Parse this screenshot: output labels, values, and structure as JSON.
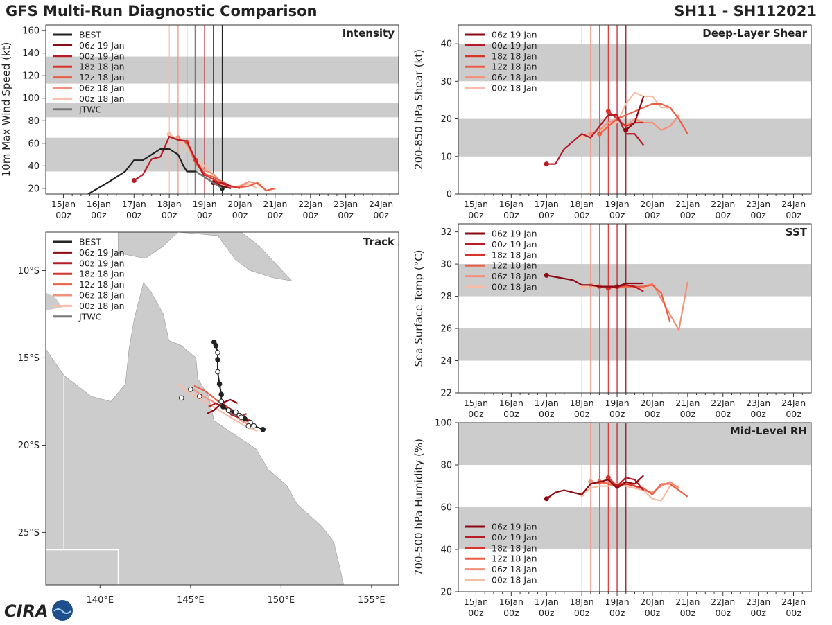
{
  "header": {
    "title": "GFS Multi-Run Diagnostic Comparison",
    "storm_id": "SH11 - SH112021"
  },
  "logo": {
    "text": "CIRA"
  },
  "colors": {
    "best": "#222222",
    "jtwc": "#777777",
    "runs": [
      "#8b0a13",
      "#b81a26",
      "#d8332d",
      "#ea5f45",
      "#f4907a",
      "#f9bda5"
    ],
    "band": "#cccccc",
    "land": "#cccccc",
    "ocean": "#ffffff"
  },
  "time_axis": {
    "labels": [
      "15Jan 00z",
      "16Jan 00z",
      "17Jan 00z",
      "18Jan 00z",
      "19Jan 00z",
      "20Jan 00z",
      "21Jan 00z",
      "22Jan 00z",
      "23Jan 00z",
      "24Jan 00z"
    ],
    "days": [
      15,
      16,
      17,
      18,
      19,
      20,
      21,
      22,
      23,
      24
    ],
    "range": [
      14.5,
      24.5
    ]
  },
  "run_labels": [
    "06z 19 Jan",
    "00z 19 Jan",
    "18z 18 Jan",
    "12z 18 Jan",
    "06z 18 Jan",
    "00z 18 Jan"
  ],
  "run_init_days": [
    19.25,
    19.0,
    18.75,
    18.5,
    18.25,
    18.0
  ],
  "chart_data": [
    {
      "id": "intensity",
      "type": "line",
      "title": "Intensity",
      "ylabel": "10m Max Wind Speed (kt)",
      "ylim": [
        15,
        165
      ],
      "yticks": [
        20,
        40,
        60,
        80,
        100,
        120,
        140,
        160
      ],
      "bands": [
        [
          35,
          65
        ],
        [
          83,
          96
        ],
        [
          113,
          137
        ]
      ],
      "legend": [
        "BEST",
        "06z 19 Jan",
        "00z 19 Jan",
        "18z 18 Jan",
        "12z 18 Jan",
        "06z 18 Jan",
        "00z 18 Jan",
        "JTWC"
      ],
      "vlines": [
        19.25,
        19.0,
        18.75,
        18.5,
        18.25,
        18.0,
        18.73,
        19.5
      ],
      "best": {
        "x": [
          15.7,
          16.25,
          16.75,
          17.0,
          17.25,
          17.5,
          17.75,
          18.0,
          18.25,
          18.4,
          18.5,
          18.75,
          19.0,
          19.25,
          19.5
        ],
        "y": [
          15,
          25,
          35,
          45,
          45,
          50,
          55,
          55,
          50,
          40,
          35,
          35,
          30,
          25,
          20
        ]
      },
      "jtwc": {
        "x": [
          18.75,
          19.0,
          19.25,
          19.5
        ],
        "y": [
          35,
          30,
          25,
          20
        ]
      },
      "series": [
        {
          "name": "06z 19 Jan",
          "x": [
            19.25,
            19.5,
            19.75
          ],
          "y": [
            25,
            22,
            20
          ]
        },
        {
          "name": "00z 19 Jan",
          "x": [
            17.0,
            17.25,
            17.5,
            17.75,
            18.0,
            18.25,
            18.5,
            18.75,
            19.0,
            19.25,
            19.5,
            19.75
          ],
          "y": [
            27,
            32,
            46,
            48,
            66,
            63,
            62,
            45,
            30,
            25,
            25,
            22
          ]
        },
        {
          "name": "18z 18 Jan",
          "x": [
            18.75,
            19.0,
            19.25,
            19.5,
            19.75,
            20.0
          ],
          "y": [
            45,
            32,
            28,
            24,
            22,
            20
          ]
        },
        {
          "name": "12z 18 Jan",
          "x": [
            18.5,
            18.75,
            19.0,
            19.25,
            19.5,
            19.75,
            20.0,
            20.25,
            20.5,
            20.75,
            21.0
          ],
          "y": [
            61,
            42,
            33,
            30,
            26,
            22,
            21,
            22,
            25,
            18,
            20
          ]
        },
        {
          "name": "06z 18 Jan",
          "x": [
            18.25,
            18.5,
            18.75,
            19.0,
            19.25,
            19.5,
            19.75,
            20.0,
            20.25,
            20.5,
            20.75,
            21.0
          ],
          "y": [
            65,
            60,
            44,
            36,
            33,
            24,
            21,
            22,
            26,
            24,
            18,
            20
          ]
        },
        {
          "name": "00z 18 Jan",
          "x": [
            18.0,
            18.25,
            18.5,
            18.75,
            19.0,
            19.25,
            19.5,
            19.75,
            20.0,
            20.25,
            20.5
          ],
          "y": [
            68,
            63,
            55,
            46,
            40,
            31,
            23,
            21,
            22,
            24,
            20
          ]
        }
      ]
    },
    {
      "id": "shear",
      "type": "line",
      "title": "Deep-Layer Shear",
      "ylabel": "200-850 hPa Shear (kt)",
      "ylim": [
        0,
        45
      ],
      "yticks": [
        0,
        10,
        20,
        30,
        40
      ],
      "bands": [
        [
          10,
          20
        ],
        [
          30,
          40
        ]
      ],
      "legend": [
        "06z 19 Jan",
        "00z 19 Jan",
        "18z 18 Jan",
        "12z 18 Jan",
        "06z 18 Jan",
        "00z 18 Jan"
      ],
      "vlines": [
        19.25,
        19.0,
        18.75,
        18.5,
        18.25,
        18.0
      ],
      "series": [
        {
          "name": "06z 19 Jan",
          "x": [
            19.25,
            19.5,
            19.75
          ],
          "y": [
            17,
            19,
            26
          ]
        },
        {
          "name": "00z 19 Jan",
          "x": [
            17.0,
            17.25,
            17.5,
            17.75,
            18.0,
            18.25,
            18.5,
            18.75,
            19.0,
            19.25,
            19.5,
            19.75
          ],
          "y": [
            8,
            8,
            12,
            14,
            16,
            15,
            18,
            21,
            21,
            16,
            16,
            13
          ]
        },
        {
          "name": "18z 18 Jan",
          "x": [
            18.75,
            19.0,
            19.25,
            19.5,
            19.75
          ],
          "y": [
            22,
            20,
            18,
            19,
            19
          ]
        },
        {
          "name": "12z 18 Jan",
          "x": [
            18.5,
            18.75,
            19.0,
            19.25,
            19.5,
            19.75,
            20.0,
            20.25,
            20.5,
            20.75,
            21.0
          ],
          "y": [
            16,
            18,
            20,
            21,
            22,
            23,
            24,
            24,
            23,
            20,
            16
          ]
        },
        {
          "name": "06z 18 Jan",
          "x": [
            18.25,
            18.5,
            18.75,
            19.0,
            19.25,
            19.5,
            19.75,
            20.0,
            20.25,
            20.5,
            20.75
          ],
          "y": [
            16,
            17,
            19,
            20,
            18,
            20,
            19,
            19,
            17,
            18,
            21
          ]
        },
        {
          "name": "00z 18 Jan",
          "x": [
            18.0,
            18.25,
            18.5,
            18.75,
            19.0,
            19.25,
            19.5,
            19.75,
            20.0,
            20.25,
            20.5
          ],
          "y": [
            15,
            16,
            17,
            18,
            19,
            24,
            27,
            26,
            26,
            23,
            23
          ]
        }
      ]
    },
    {
      "id": "sst",
      "type": "line",
      "title": "SST",
      "ylabel": "Sea Surface Temp (°C)",
      "ylim": [
        22,
        32.5
      ],
      "yticks": [
        22,
        24,
        26,
        28,
        30,
        32
      ],
      "bands": [
        [
          24,
          26
        ],
        [
          28,
          30
        ]
      ],
      "legend": [
        "06z 19 Jan",
        "00z 19 Jan",
        "18z 18 Jan",
        "12z 18 Jan",
        "06z 18 Jan",
        "00z 18 Jan"
      ],
      "vlines": [
        19.25,
        19.0,
        18.75,
        18.5,
        18.25,
        18.0
      ],
      "series": [
        {
          "name": "06z 19 Jan",
          "x": [
            17.0,
            17.5,
            17.75,
            18.0,
            18.25,
            18.5,
            18.75,
            19.0,
            19.25,
            19.5,
            19.75
          ],
          "y": [
            29.3,
            29.1,
            29.0,
            28.7,
            28.7,
            28.6,
            28.6,
            28.6,
            28.8,
            28.8,
            28.8
          ]
        },
        {
          "name": "00z 19 Jan",
          "x": [
            19.0,
            19.25,
            19.5,
            19.75
          ],
          "y": [
            28.6,
            28.7,
            28.6,
            28.3
          ]
        },
        {
          "name": "18z 18 Jan",
          "x": [
            18.75,
            19.0,
            19.25,
            19.5
          ],
          "y": [
            28.5,
            28.6,
            28.7,
            28.6
          ]
        },
        {
          "name": "12z 18 Jan",
          "x": [
            18.5,
            18.75,
            19.0,
            19.25,
            19.5,
            19.75,
            20.0,
            20.25,
            20.5
          ],
          "y": [
            28.6,
            28.5,
            28.6,
            28.6,
            28.6,
            28.6,
            28.7,
            28.2,
            26.4
          ]
        },
        {
          "name": "06z 18 Jan",
          "x": [
            18.25,
            18.5,
            18.75,
            19.0,
            19.25,
            19.5,
            19.75,
            20.0,
            20.75,
            21.0
          ],
          "y": [
            28.7,
            28.6,
            28.6,
            28.5,
            28.6,
            28.6,
            28.6,
            28.8,
            25.9,
            28.9
          ]
        },
        {
          "name": "00z 18 Jan",
          "x": [
            18.0,
            18.25,
            18.5,
            18.75,
            19.0,
            19.25,
            19.5,
            19.75,
            20.0
          ],
          "y": [
            28.6,
            28.6,
            28.6,
            28.5,
            28.5,
            28.6,
            28.5,
            28.5,
            28.5
          ]
        }
      ]
    },
    {
      "id": "rh",
      "type": "line",
      "title": "Mid-Level RH",
      "ylabel": "700-500 hPa Humidity (%)",
      "ylim": [
        20,
        100
      ],
      "yticks": [
        20,
        40,
        60,
        80,
        100
      ],
      "bands": [
        [
          40,
          60
        ],
        [
          80,
          100
        ]
      ],
      "legend": [
        "06z 19 Jan",
        "00z 19 Jan",
        "18z 18 Jan",
        "12z 18 Jan",
        "06z 18 Jan",
        "00z 18 Jan"
      ],
      "vlines": [
        19.25,
        19.0,
        18.75,
        18.5,
        18.25,
        18.0
      ],
      "series": [
        {
          "name": "06z 19 Jan",
          "x": [
            17.0,
            17.25,
            17.5,
            17.75,
            18.0,
            18.25,
            18.5,
            18.75,
            19.0,
            19.25,
            19.5,
            19.75
          ],
          "y": [
            64,
            67,
            68,
            67,
            66,
            71,
            72,
            73,
            69,
            72,
            71,
            75
          ]
        },
        {
          "name": "00z 19 Jan",
          "x": [
            19.0,
            19.25,
            19.5,
            19.75
          ],
          "y": [
            70,
            74,
            73,
            68
          ]
        },
        {
          "name": "18z 18 Jan",
          "x": [
            18.75,
            19.0,
            19.25,
            19.5,
            19.75
          ],
          "y": [
            74,
            70,
            71,
            70,
            69
          ]
        },
        {
          "name": "12z 18 Jan",
          "x": [
            18.5,
            18.75,
            19.0,
            19.25,
            19.5,
            19.75,
            20.0,
            20.25,
            20.5,
            20.75,
            21.0
          ],
          "y": [
            72,
            71,
            70,
            72,
            70,
            69,
            66,
            71,
            71,
            68,
            65
          ]
        },
        {
          "name": "06z 18 Jan",
          "x": [
            18.25,
            18.5,
            18.75,
            19.0,
            19.25,
            19.5,
            19.75,
            20.0,
            20.25,
            20.5,
            20.75
          ],
          "y": [
            72,
            71,
            72,
            70,
            71,
            70,
            68,
            67,
            70,
            72,
            69
          ]
        },
        {
          "name": "00z 18 Jan",
          "x": [
            18.0,
            18.25,
            18.5,
            18.75,
            19.0,
            19.25,
            19.5,
            19.75,
            20.0,
            20.25,
            20.5,
            20.75
          ],
          "y": [
            66,
            69,
            70,
            70,
            71,
            70,
            69,
            68,
            64,
            63,
            70,
            70
          ]
        }
      ]
    },
    {
      "id": "track",
      "type": "map",
      "title": "Track",
      "lon_range": [
        137,
        156.5
      ],
      "lat_range": [
        -28,
        -7.8
      ],
      "lon_ticks": [
        140,
        145,
        150,
        155
      ],
      "lon_labels": [
        "140°E",
        "145°E",
        "150°E",
        "155°E"
      ],
      "lat_ticks": [
        -10,
        -15,
        -20,
        -25
      ],
      "lat_labels": [
        "10°S",
        "15°S",
        "20°S",
        "25°S"
      ],
      "legend": [
        "BEST",
        "06z 19 Jan",
        "00z 19 Jan",
        "18z 18 Jan",
        "12z 18 Jan",
        "06z 18 Jan",
        "00z 18 Jan",
        "JTWC"
      ],
      "best_track": {
        "lon": [
          146.3,
          146.4,
          146.5,
          146.5,
          146.5,
          146.6,
          146.7,
          146.7,
          146.8,
          147.1,
          147.4,
          147.7,
          148.0,
          148.3,
          148.5,
          149.0
        ],
        "lat": [
          -14.1,
          -14.3,
          -14.7,
          -15.1,
          -15.8,
          -16.5,
          -17.1,
          -17.5,
          -17.8,
          -18.0,
          -18.1,
          -18.3,
          -18.5,
          -18.7,
          -18.9,
          -19.1
        ],
        "filled": [
          1,
          1,
          0,
          1,
          0,
          1,
          1,
          0,
          1,
          0,
          1,
          0,
          1,
          0,
          0,
          1
        ]
      },
      "jtwc_track": {
        "lon": [
          146.5,
          146.9,
          147.3,
          147.8
        ],
        "lat": [
          -17.4,
          -17.9,
          -18.2,
          -18.4
        ]
      },
      "run_tracks": [
        {
          "name": "06z 19 Jan",
          "lon": [
            145.9,
            146.3,
            146.7,
            147.2,
            147.6
          ],
          "lat": [
            -18.2,
            -18.0,
            -17.6,
            -17.4,
            -17.6
          ]
        },
        {
          "name": "00z 19 Jan",
          "lon": [
            146.0,
            146.4,
            146.9,
            147.3,
            147.7,
            148.1
          ],
          "lat": [
            -17.8,
            -17.6,
            -17.9,
            -18.3,
            -18.4,
            -18.2
          ]
        },
        {
          "name": "18z 18 Jan",
          "lon": [
            146.6,
            147.0,
            147.5,
            147.9,
            148.3
          ],
          "lat": [
            -17.4,
            -17.8,
            -18.1,
            -18.4,
            -18.6
          ]
        },
        {
          "name": "12z 18 Jan",
          "lon": [
            145.2,
            145.8,
            146.3,
            146.9,
            147.4,
            147.9,
            148.4
          ],
          "lat": [
            -16.6,
            -16.9,
            -17.3,
            -17.8,
            -18.2,
            -18.5,
            -18.8
          ]
        },
        {
          "name": "06z 18 Jan",
          "lon": [
            145.0,
            145.7,
            146.4,
            147.1,
            147.8,
            148.4
          ],
          "lat": [
            -16.7,
            -17.2,
            -17.6,
            -18.0,
            -18.6,
            -18.9
          ]
        },
        {
          "name": "00z 18 Jan",
          "lon": [
            144.3,
            144.9,
            145.6,
            146.4,
            147.2,
            148.0,
            148.7
          ],
          "lat": [
            -16.5,
            -17.0,
            -17.4,
            -17.9,
            -18.4,
            -18.9,
            -19.2
          ]
        }
      ],
      "open_markers": {
        "lon": [
          144.5,
          145.0,
          145.5,
          147.5,
          147.8,
          148.2
        ],
        "lat": [
          -17.3,
          -16.8,
          -17.2,
          -18.1,
          -18.4,
          -18.9
        ]
      }
    }
  ]
}
